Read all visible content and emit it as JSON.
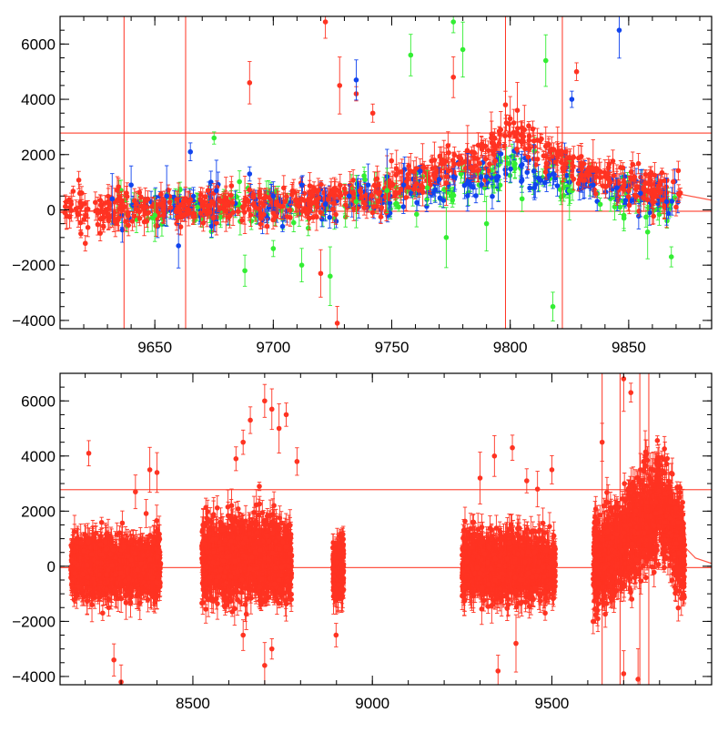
{
  "chart_data": [
    {
      "type": "scatter",
      "title": "",
      "xlabel": "",
      "ylabel": "",
      "xlim": [
        9610,
        9885
      ],
      "ylim": [
        -4300,
        7000
      ],
      "xticks": [
        9650,
        9700,
        9750,
        9800,
        9850
      ],
      "xtick_labels": [
        "9650",
        "9700",
        "9750",
        "9800",
        "9850"
      ],
      "yticks": [
        -4000,
        -2000,
        0,
        2000,
        4000,
        6000
      ],
      "ytick_labels": [
        "−4000",
        "−2000",
        "0",
        "2000",
        "4000",
        "6000"
      ],
      "reference_lines": [
        2780,
        -50
      ],
      "colors": {
        "red": "#ff3322",
        "blue": "#1144ee",
        "green": "#33ee33"
      },
      "trend": {
        "x": [
          9610,
          9640,
          9670,
          9700,
          9730,
          9750,
          9765,
          9780,
          9792,
          9798,
          9805,
          9815,
          9830,
          9850,
          9870,
          9885
        ],
        "y": [
          -100,
          50,
          100,
          200,
          400,
          800,
          1300,
          1700,
          2000,
          2900,
          2500,
          2100,
          1500,
          900,
          600,
          350
        ]
      },
      "series": [
        {
          "name": "red",
          "color": "#ff3322",
          "x": [
            9612,
            9630,
            9645,
            9660,
            9672,
            9680,
            9688,
            9695,
            9700,
            9705,
            9712,
            9718,
            9722,
            9728,
            9735,
            9742,
            9748,
            9752,
            9758,
            9763,
            9768,
            9772,
            9776,
            9782,
            9788,
            9792,
            9796,
            9800,
            9803,
            9806,
            9810,
            9815,
            9820,
            9825,
            9830,
            9835,
            9840,
            9845,
            9850,
            9855,
            9860,
            9866,
            9870,
            9720,
            9727,
            9773,
            9798,
            9828,
            9690
          ],
          "y": [
            -100,
            30,
            120,
            50,
            150,
            200,
            180,
            250,
            200,
            300,
            400,
            350,
            6800,
            4500,
            4200,
            3500,
            1200,
            1300,
            1400,
            1600,
            1800,
            1700,
            4800,
            2100,
            2200,
            2600,
            2900,
            3300,
            3600,
            2900,
            2500,
            2300,
            2100,
            1900,
            1700,
            1500,
            1200,
            900,
            700,
            500,
            300,
            200,
            100,
            -2300,
            -4100,
            1200,
            3800,
            5000,
            4600
          ]
        },
        {
          "name": "blue",
          "color": "#1144ee",
          "x": [
            9632,
            9640,
            9655,
            9665,
            9676,
            9690,
            9700,
            9712,
            9722,
            9732,
            9740,
            9748,
            9755,
            9762,
            9770,
            9776,
            9782,
            9790,
            9795,
            9810,
            9818,
            9825,
            9835,
            9845,
            9855,
            9866,
            9735,
            9660,
            9846,
            9826
          ],
          "y": [
            400,
            900,
            500,
            2100,
            700,
            1300,
            500,
            900,
            200,
            500,
            900,
            1200,
            900,
            1400,
            1100,
            1200,
            1000,
            1200,
            1200,
            1400,
            1300,
            1000,
            900,
            800,
            600,
            300,
            4700,
            -1300,
            6500,
            4000
          ]
        },
        {
          "name": "green",
          "color": "#33ee33",
          "x": [
            9650,
            9668,
            9675,
            9688,
            9700,
            9712,
            9724,
            9735,
            9748,
            9758,
            9765,
            9773,
            9780,
            9790,
            9805,
            9815,
            9825,
            9838,
            9848,
            9858,
            9868,
            9776,
            9818
          ],
          "y": [
            -200,
            100,
            2600,
            -2200,
            -1400,
            -2000,
            -2400,
            300,
            700,
            5600,
            800,
            -1000,
            5800,
            -500,
            400,
            5400,
            700,
            200,
            -300,
            -800,
            -1700,
            6800,
            -3500
          ]
        }
      ]
    },
    {
      "type": "scatter",
      "title": "",
      "xlabel": "",
      "ylabel": "",
      "xlim": [
        8130,
        9945
      ],
      "ylim": [
        -4300,
        7000
      ],
      "xticks": [
        8500,
        9000,
        9500
      ],
      "xtick_labels": [
        "8500",
        "9000",
        "9500"
      ],
      "yticks": [
        -4000,
        -2000,
        0,
        2000,
        4000,
        6000
      ],
      "ytick_labels": [
        "−4000",
        "−2000",
        "0",
        "2000",
        "4000",
        "6000"
      ],
      "reference_lines": [
        2780,
        -50
      ],
      "colors": {
        "red": "#ff3322"
      },
      "trend": {
        "x": [
          9610,
          9650,
          9700,
          9750,
          9790,
          9800,
          9815,
          9840,
          9870,
          9900,
          9945
        ],
        "y": [
          -50,
          50,
          300,
          900,
          1800,
          2800,
          2200,
          1400,
          700,
          300,
          100
        ]
      },
      "segments": [
        {
          "x0": 8160,
          "x1": 8410,
          "center": 0,
          "spread": 500
        },
        {
          "x0": 8525,
          "x1": 8775,
          "center": 250,
          "spread": 700
        },
        {
          "x0": 8890,
          "x1": 8920,
          "center": -100,
          "spread": 500
        },
        {
          "x0": 9250,
          "x1": 9510,
          "center": 0,
          "spread": 550
        },
        {
          "x0": 9615,
          "x1": 9870,
          "center": 500,
          "spread": 800
        }
      ],
      "outliers": {
        "x": [
          8210,
          8340,
          8380,
          8400,
          8620,
          8640,
          8660,
          8700,
          8720,
          8740,
          8760,
          8790,
          9300,
          9340,
          9390,
          9430,
          9460,
          9500,
          9640,
          9700,
          9720,
          9760,
          9780,
          8280,
          8300,
          8640,
          8700,
          8720,
          9350,
          9400,
          9700,
          9740
        ],
        "y": [
          4100,
          2700,
          3500,
          3400,
          3900,
          4500,
          5300,
          6000,
          5700,
          5000,
          5500,
          3800,
          3200,
          4000,
          4300,
          3100,
          2800,
          3500,
          4500,
          6800,
          6300,
          4000,
          3500,
          -3400,
          -4200,
          -2500,
          -3600,
          -3000,
          -3800,
          -2800,
          -3900,
          -4100
        ]
      }
    }
  ]
}
